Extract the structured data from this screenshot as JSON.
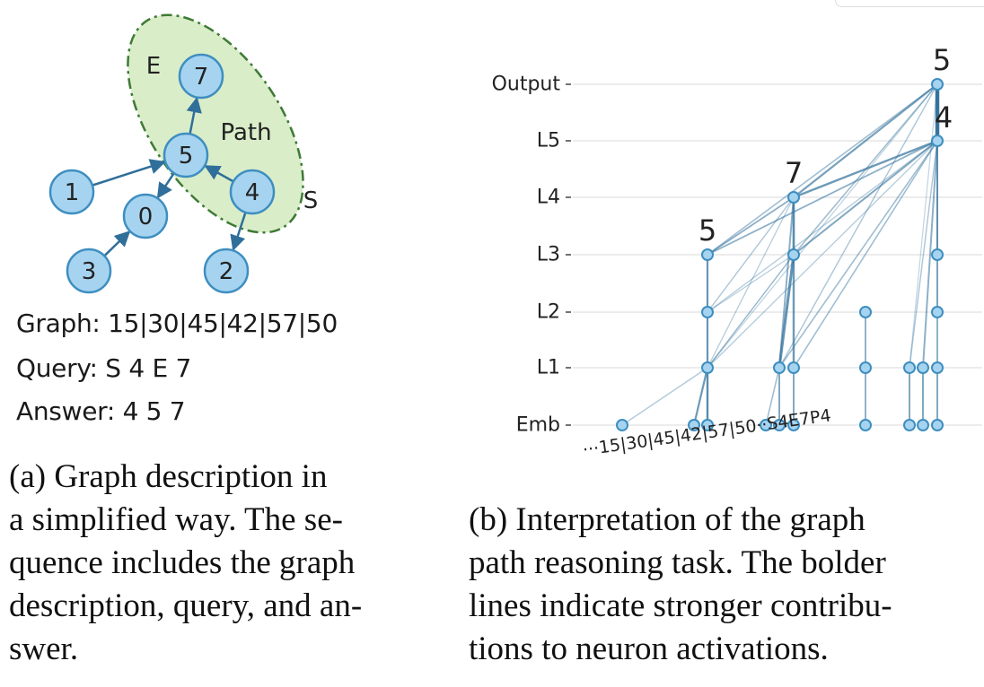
{
  "graph_figure": {
    "nodes": [
      {
        "id": "7",
        "label": "7"
      },
      {
        "id": "5",
        "label": "5"
      },
      {
        "id": "1",
        "label": "1"
      },
      {
        "id": "0",
        "label": "0"
      },
      {
        "id": "4",
        "label": "4"
      },
      {
        "id": "3",
        "label": "3"
      },
      {
        "id": "2",
        "label": "2"
      }
    ],
    "edges": [
      [
        "1",
        "5"
      ],
      [
        "5",
        "7"
      ],
      [
        "5",
        "0"
      ],
      [
        "4",
        "5"
      ],
      [
        "3",
        "0"
      ],
      [
        "4",
        "2"
      ]
    ],
    "region_label_e": "E",
    "region_label_s": "S",
    "region_label_path": "Path",
    "highlight_color": "#d9edc9",
    "node_color": "#a6d4f0"
  },
  "graph_text": {
    "graph_line": "Graph: 15|30|45|42|57|50",
    "query_line": "Query: S 4 E 7",
    "answer_line": "Answer: 4 5 7"
  },
  "caption_a": {
    "lines": [
      "(a) Graph description in",
      "a simplified way. The se-",
      "quence includes the graph",
      "description, query, and an-",
      "swer."
    ]
  },
  "caption_b": {
    "lines": [
      "(b) Interpretation of the graph",
      "path reasoning task. The bolder",
      "lines indicate stronger contribu-",
      "tions to neuron activations."
    ]
  },
  "interp_figure": {
    "layers": [
      "Emb",
      "L1",
      "L2",
      "L3",
      "L4",
      "L5",
      "Output"
    ],
    "token_text": "···15|30|45|42|57|50··S4E7P4",
    "peak_labels": [
      "5",
      "7",
      "5",
      "4"
    ],
    "line_color": "#2f6f9a"
  }
}
